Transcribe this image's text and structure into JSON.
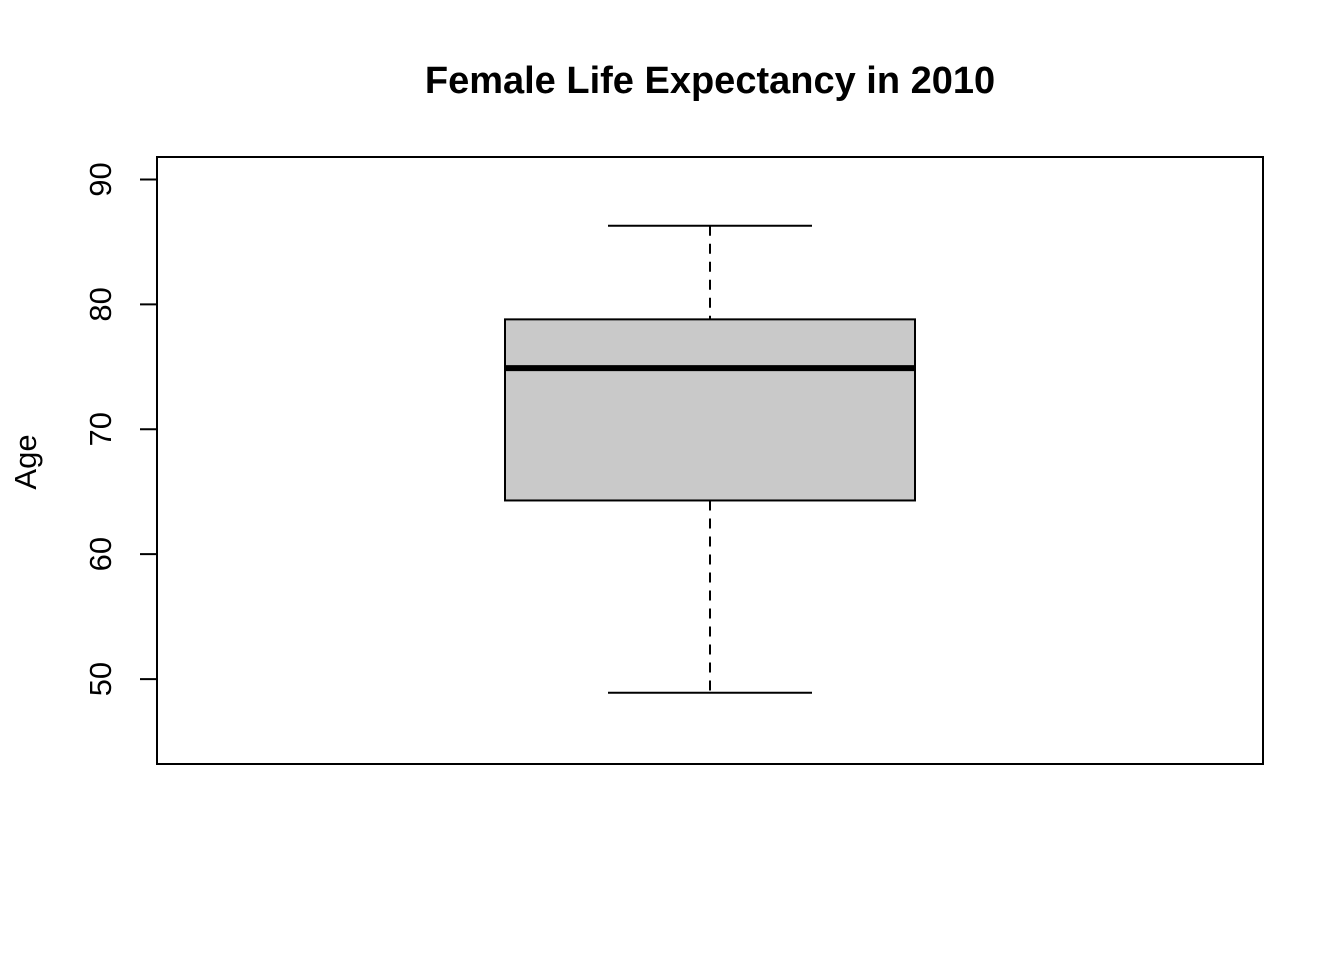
{
  "chart_data": {
    "type": "box",
    "title": "Female Life Expectancy in 2010",
    "xlabel": "",
    "ylabel": "Age",
    "ylim": [
      43.2,
      91.8
    ],
    "yticks": [
      50,
      60,
      70,
      80,
      90
    ],
    "series": [
      {
        "min": 48.9,
        "q1": 64.3,
        "median": 74.9,
        "q3": 78.8,
        "max": 86.3
      }
    ],
    "colors": {
      "box_fill": "#c9c9c9",
      "line": "#000000"
    },
    "grid": false,
    "legend": "none"
  }
}
